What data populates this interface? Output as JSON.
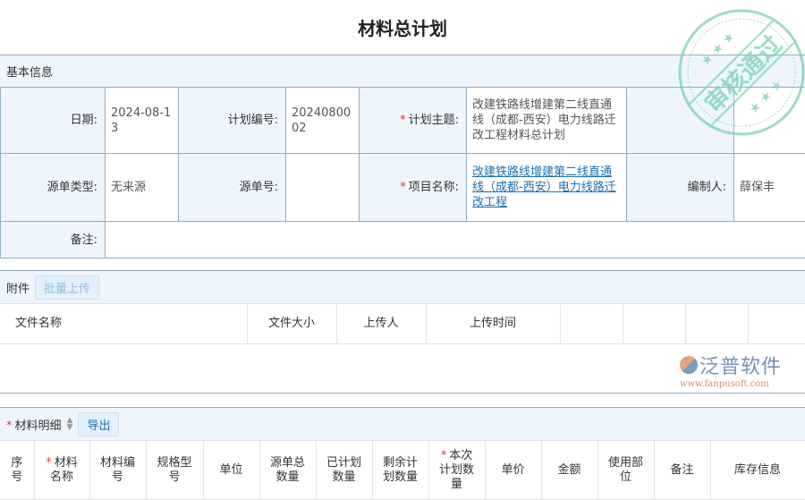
{
  "title": "材料总计划",
  "basic": {
    "header": "基本信息",
    "date_label": "日期:",
    "date": "2024-08-13",
    "plan_no_label": "计划编号:",
    "plan_no": "2024080002",
    "subject_label": "计划主题:",
    "subject": "改建铁路线增建第二线直通线（成都-西安）电力线路迁改工程材料总计划",
    "source_type_label": "源单类型:",
    "source_type": "无来源",
    "source_no_label": "源单号:",
    "source_no": "",
    "project_label": "项目名称:",
    "project": "改建铁路线增建第二线直通线（成都-西安）电力线路迁改工程",
    "author_label": "编制人:",
    "author": "薛保丰",
    "remark_label": "备注:",
    "remark": ""
  },
  "attachments": {
    "header": "附件",
    "upload_button": "批量上传",
    "columns": [
      "文件名称",
      "文件大小",
      "上传人",
      "上传时间",
      "",
      "",
      "",
      ""
    ]
  },
  "materials": {
    "header": "材料明细",
    "export_button": "导出",
    "columns": [
      {
        "label": "序号"
      },
      {
        "label": "材料名称",
        "required": true
      },
      {
        "label": "材料编号"
      },
      {
        "label": "规格型号"
      },
      {
        "label": "单位"
      },
      {
        "label": "源单总数量"
      },
      {
        "label": "已计划数量"
      },
      {
        "label": "剩余计划数量"
      },
      {
        "label": "本次计划数量",
        "required": true
      },
      {
        "label": "单价"
      },
      {
        "label": "金额"
      },
      {
        "label": "使用部位"
      },
      {
        "label": "备注"
      },
      {
        "label": "库存信息"
      }
    ]
  },
  "stamp": {
    "text": "审核通过",
    "color": "#7ccfb5"
  },
  "watermark": {
    "brand": "泛普软件",
    "url": "www.fanpusoft.com"
  },
  "colors": {
    "border": "#8fb0c4",
    "header_bg": "#eef5fd",
    "link": "#1a6fb3",
    "required": "#e33"
  }
}
